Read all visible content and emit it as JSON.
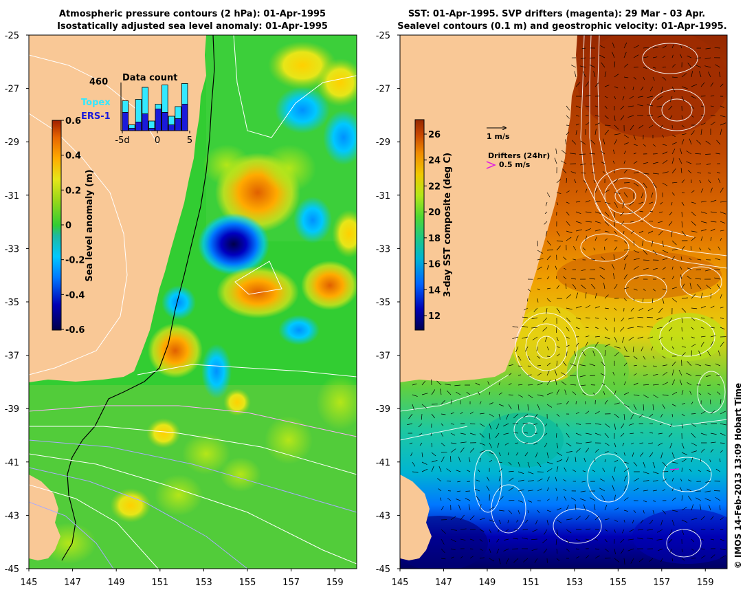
{
  "left_panel": {
    "title_line1": "Atmospheric pressure contours (2 hPa): 01-Apr-1995",
    "title_line2": "Isostatically adjusted sea level anomaly: 01-Apr-1995",
    "y_ticks": [
      "-25",
      "-27",
      "-29",
      "-31",
      "-33",
      "-35",
      "-37",
      "-39",
      "-41",
      "-43",
      "-45"
    ],
    "x_ticks": [
      "145",
      "147",
      "149",
      "151",
      "153",
      "155",
      "157",
      "159"
    ],
    "colorbar": {
      "label": "Sea level anomaly (m)",
      "ticks": [
        "0.6",
        "0.4",
        "0.2",
        "0",
        "-0.2",
        "-0.4",
        "-0.6"
      ]
    },
    "inset": {
      "title": "Data count",
      "max_count": "460",
      "legend": [
        {
          "label": "Topex",
          "color": "#33e8ff"
        },
        {
          "label": "ERS-1",
          "color": "#1a1adb"
        }
      ],
      "x_ticks": [
        "-5d",
        "0",
        "5"
      ],
      "bars_fraction": [
        {
          "topex": 0.62,
          "ers": 0.38
        },
        {
          "topex": 0.12,
          "ers": 0.05
        },
        {
          "topex": 0.65,
          "ers": 0.18
        },
        {
          "topex": 0.9,
          "ers": 0.35
        },
        {
          "topex": 0.2,
          "ers": 0.05
        },
        {
          "topex": 0.55,
          "ers": 0.45
        },
        {
          "topex": 0.95,
          "ers": 0.38
        },
        {
          "topex": 0.3,
          "ers": 0.12
        },
        {
          "topex": 0.5,
          "ers": 0.25
        },
        {
          "topex": 0.98,
          "ers": 0.55
        }
      ]
    }
  },
  "right_panel": {
    "title_line1": "SST: 01-Apr-1995. SVP drifters (magenta): 29 Mar - 03 Apr.",
    "title_line2": "Sealevel contours (0.1 m) and geostrophic velocity: 01-Apr-1995.",
    "y_ticks": [
      "-25",
      "-27",
      "-29",
      "-31",
      "-33",
      "-35",
      "-37",
      "-39",
      "-41",
      "-43",
      "-45"
    ],
    "x_ticks": [
      "145",
      "147",
      "149",
      "151",
      "153",
      "155",
      "157",
      "159"
    ],
    "colorbar": {
      "label": "3-day SST composite (deg C)",
      "ticks": [
        "26",
        "24",
        "22",
        "20",
        "18",
        "16",
        "14",
        "12"
      ]
    },
    "velocity_scale_label": "1 m/s",
    "drifters_title": "Drifters (24hr)",
    "drifters_scale_label": "0.5 m/s",
    "drifter_color": "#e020e0"
  },
  "credit": "© IMOS 14-Feb-2013 13:09 Hobart Time",
  "colors": {
    "land": "#f9c896",
    "slm_scale": [
      "#00004a",
      "#0000b4",
      "#0078ff",
      "#00c8ff",
      "#32cd32",
      "#9ad719",
      "#e6e619",
      "#ffaa00",
      "#e66400",
      "#a01e00"
    ],
    "sst_scale": [
      "#000050",
      "#0000b4",
      "#0064ff",
      "#00c8c8",
      "#1ec882",
      "#50d732",
      "#b4e619",
      "#f0c800",
      "#f08c00",
      "#c84600",
      "#962800"
    ]
  }
}
